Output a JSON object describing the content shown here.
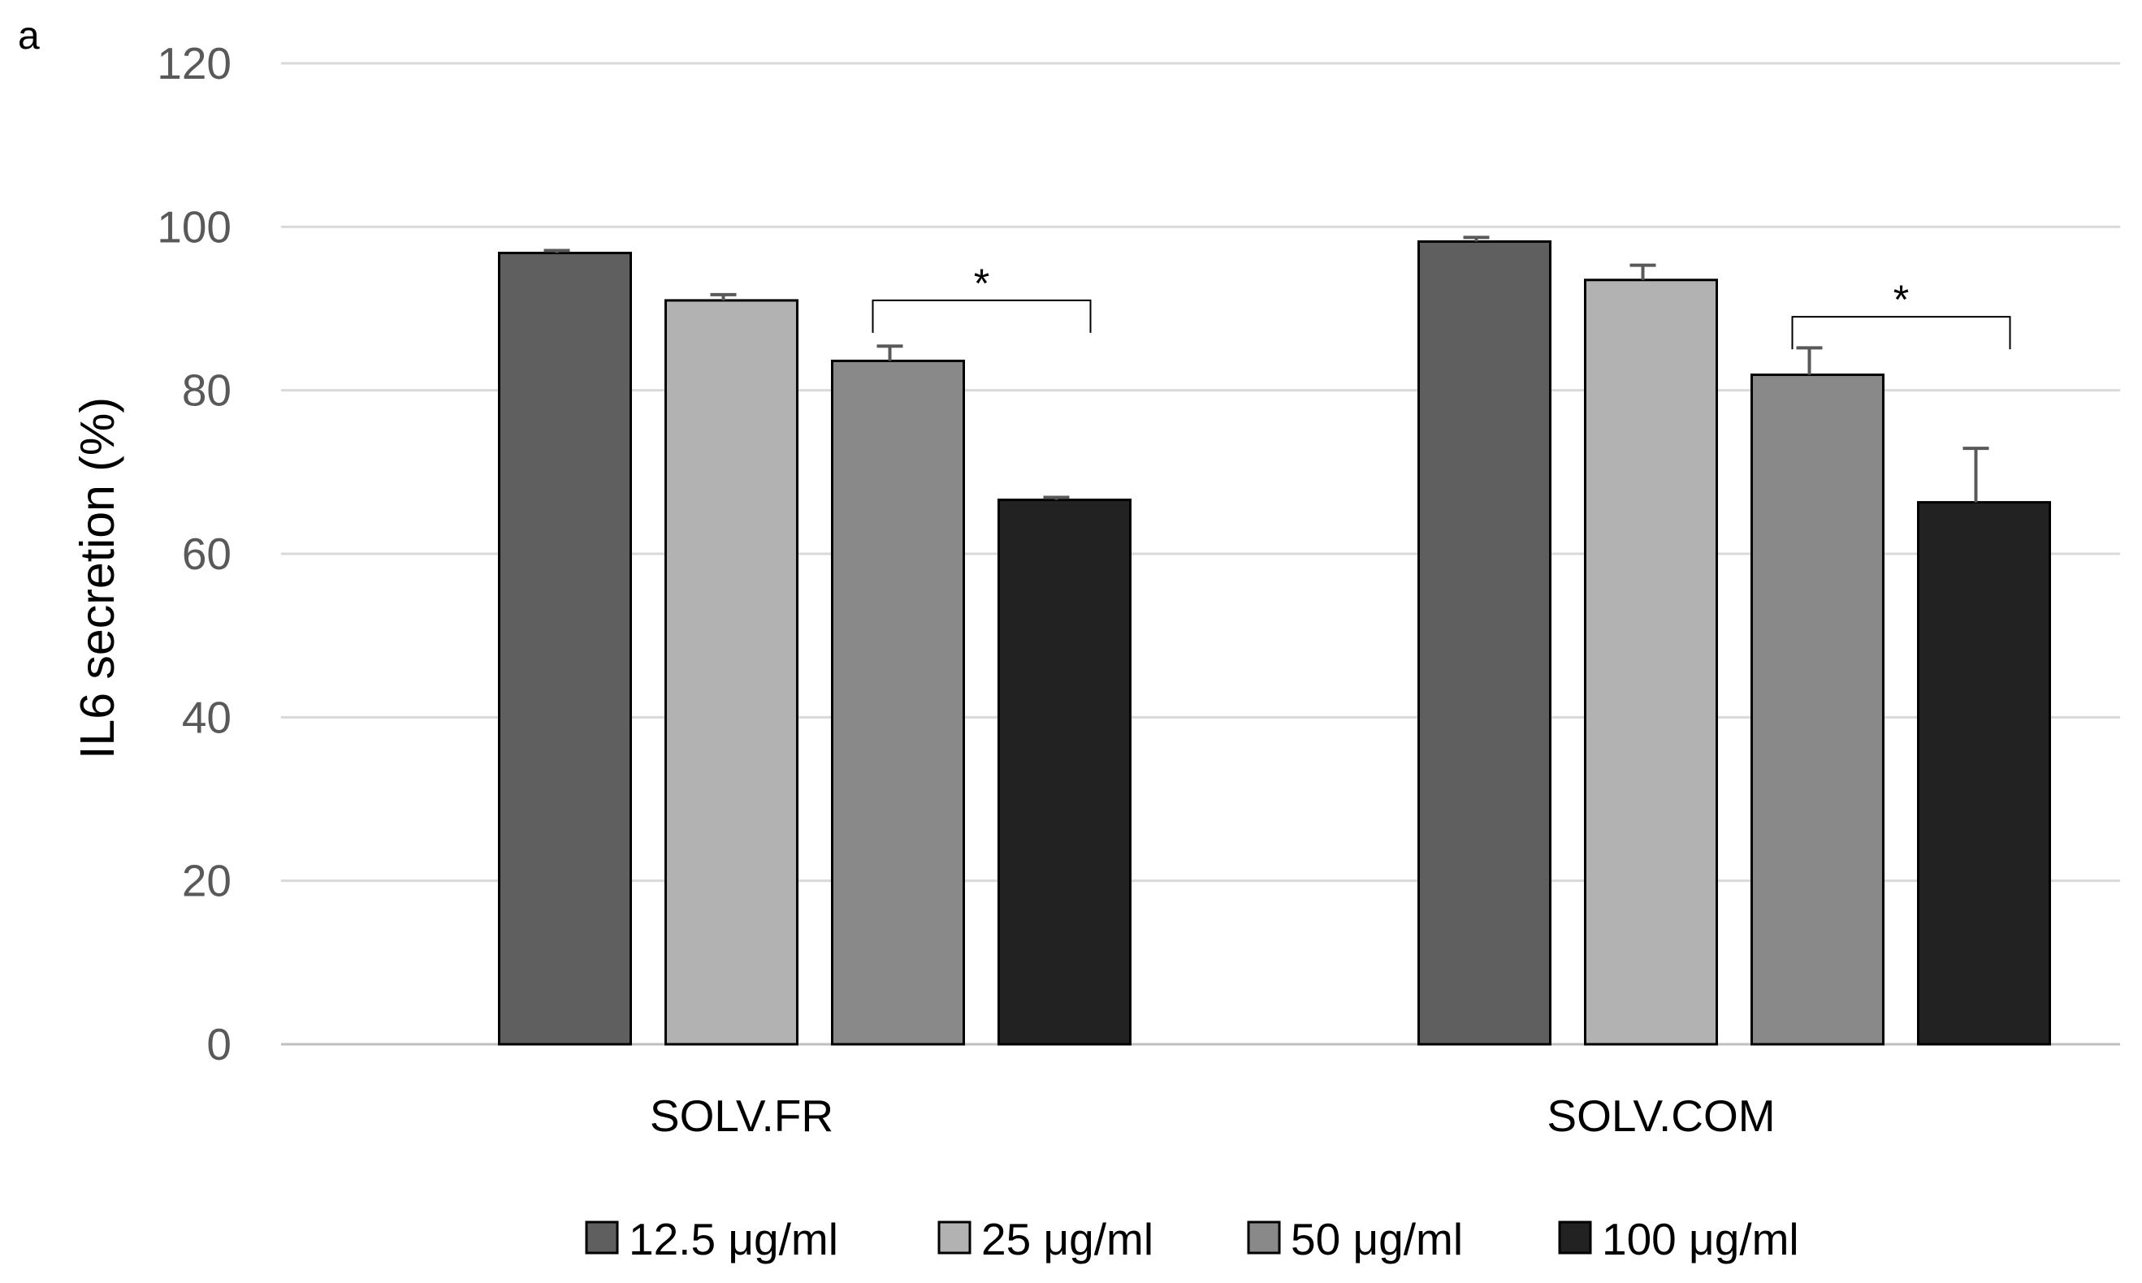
{
  "panel_label": "a",
  "chart_data": {
    "type": "bar",
    "title": "",
    "xlabel": "",
    "ylabel": "IL6 secretion (%)",
    "ylim": [
      0,
      120
    ],
    "yticks": [
      0,
      20,
      40,
      60,
      80,
      100,
      120
    ],
    "grid": true,
    "legend_position": "bottom",
    "categories": [
      "SOLV.FR",
      "SOLV.COM"
    ],
    "series": [
      {
        "name": "12.5 μg/ml",
        "color": "#5f5f5f",
        "values": [
          96.8,
          98.2
        ],
        "errors": [
          0.3,
          0.5
        ]
      },
      {
        "name": "25 μg/ml",
        "color": "#b2b2b2",
        "values": [
          91.0,
          93.5
        ],
        "errors": [
          0.7,
          1.8
        ]
      },
      {
        "name": "50 μg/ml",
        "color": "#898989",
        "values": [
          83.6,
          81.9
        ],
        "errors": [
          1.8,
          3.3
        ]
      },
      {
        "name": "100 μg/ml",
        "color": "#222222",
        "values": [
          66.6,
          66.3
        ],
        "errors": [
          0.3,
          6.6
        ]
      }
    ],
    "annotations": [
      {
        "text": "*",
        "category": "SOLV.FR",
        "from_series": 2,
        "to_series": 3,
        "level": 91
      },
      {
        "text": "*",
        "category": "SOLV.COM",
        "from_series": 2,
        "to_series": 3,
        "level": 89
      }
    ]
  }
}
